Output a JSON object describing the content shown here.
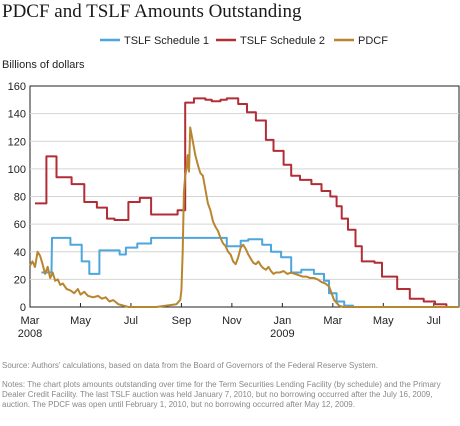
{
  "title": "PDCF and TSLF Amounts Outstanding",
  "source": "Source: Authors' calculations, based on data from the Board of Governors of the Federal Reserve System.",
  "notes": "Notes: The chart plots amounts outstanding over time for the Term Securities Lending Facility (by schedule) and the Primary Dealer Credit Facility. The last TSLF auction was held January 7, 2010, but no borrowing occurred after the July 16, 2009, auction. The PDCF was open until February 1, 2010, but no borrowing occurred after May 12, 2009.",
  "chart_data": {
    "type": "line",
    "ylabel": "Billions of dollars",
    "ylim": [
      0,
      160
    ],
    "yticks": [
      0,
      20,
      40,
      60,
      80,
      100,
      120,
      140,
      160
    ],
    "xlim": [
      0,
      17
    ],
    "x_unit": "months since March 2008",
    "xticks": [
      {
        "x": 0,
        "label": "Mar",
        "sub": "2008"
      },
      {
        "x": 2,
        "label": "May",
        "sub": ""
      },
      {
        "x": 4,
        "label": "Jul",
        "sub": ""
      },
      {
        "x": 6,
        "label": "Sep",
        "sub": ""
      },
      {
        "x": 8,
        "label": "Nov",
        "sub": ""
      },
      {
        "x": 10,
        "label": "Jan",
        "sub": "2009"
      },
      {
        "x": 12,
        "label": "Mar",
        "sub": ""
      },
      {
        "x": 14,
        "label": "May",
        "sub": ""
      },
      {
        "x": 16,
        "label": "Jul",
        "sub": ""
      }
    ],
    "grid": "horizontal",
    "legend_position": "top",
    "series": [
      {
        "name": "TSLF Schedule 1",
        "color": "#4da6dd",
        "points": [
          [
            0.45,
            25
          ],
          [
            0.85,
            25
          ],
          [
            0.87,
            50
          ],
          [
            1.6,
            50
          ],
          [
            1.6,
            45
          ],
          [
            2.05,
            45
          ],
          [
            2.05,
            33
          ],
          [
            2.35,
            33
          ],
          [
            2.35,
            24
          ],
          [
            2.75,
            24
          ],
          [
            2.75,
            41
          ],
          [
            3.55,
            41
          ],
          [
            3.55,
            38
          ],
          [
            3.8,
            38
          ],
          [
            3.8,
            43
          ],
          [
            4.25,
            43
          ],
          [
            4.25,
            46
          ],
          [
            4.8,
            46
          ],
          [
            4.8,
            50
          ],
          [
            7.8,
            50
          ],
          [
            7.8,
            44
          ],
          [
            8.35,
            44
          ],
          [
            8.35,
            48
          ],
          [
            8.65,
            48
          ],
          [
            8.65,
            49
          ],
          [
            9.2,
            49
          ],
          [
            9.2,
            45
          ],
          [
            9.55,
            45
          ],
          [
            9.55,
            40
          ],
          [
            9.95,
            40
          ],
          [
            9.95,
            36
          ],
          [
            10.35,
            36
          ],
          [
            10.35,
            25
          ],
          [
            10.75,
            25
          ],
          [
            10.75,
            27
          ],
          [
            11.25,
            27
          ],
          [
            11.25,
            24
          ],
          [
            11.65,
            24
          ],
          [
            11.65,
            19
          ],
          [
            11.85,
            19
          ],
          [
            11.85,
            10
          ],
          [
            12.15,
            10
          ],
          [
            12.15,
            4
          ],
          [
            12.45,
            4
          ],
          [
            12.45,
            1
          ],
          [
            12.8,
            1
          ],
          [
            12.8,
            0
          ],
          [
            17,
            0
          ]
        ]
      },
      {
        "name": "TSLF Schedule 2",
        "color": "#b22d35",
        "points": [
          [
            0.2,
            75
          ],
          [
            0.65,
            75
          ],
          [
            0.65,
            109
          ],
          [
            1.05,
            109
          ],
          [
            1.05,
            94
          ],
          [
            1.65,
            94
          ],
          [
            1.65,
            89
          ],
          [
            2.15,
            89
          ],
          [
            2.15,
            76
          ],
          [
            2.65,
            76
          ],
          [
            2.65,
            72
          ],
          [
            3.05,
            72
          ],
          [
            3.05,
            64
          ],
          [
            3.35,
            64
          ],
          [
            3.35,
            63
          ],
          [
            3.9,
            63
          ],
          [
            3.9,
            76
          ],
          [
            4.35,
            76
          ],
          [
            4.35,
            79
          ],
          [
            4.8,
            79
          ],
          [
            4.8,
            67
          ],
          [
            5.85,
            67
          ],
          [
            5.85,
            70
          ],
          [
            6.15,
            70
          ],
          [
            6.15,
            148
          ],
          [
            6.5,
            148
          ],
          [
            6.5,
            151
          ],
          [
            6.95,
            151
          ],
          [
            6.95,
            150
          ],
          [
            7.2,
            150
          ],
          [
            7.2,
            149
          ],
          [
            7.55,
            149
          ],
          [
            7.55,
            150
          ],
          [
            7.8,
            150
          ],
          [
            7.8,
            151
          ],
          [
            8.25,
            151
          ],
          [
            8.25,
            147
          ],
          [
            8.6,
            147
          ],
          [
            8.6,
            141
          ],
          [
            8.95,
            141
          ],
          [
            8.95,
            135
          ],
          [
            9.35,
            135
          ],
          [
            9.35,
            121
          ],
          [
            9.65,
            121
          ],
          [
            9.65,
            113
          ],
          [
            10.05,
            113
          ],
          [
            10.05,
            103
          ],
          [
            10.35,
            103
          ],
          [
            10.35,
            95
          ],
          [
            10.7,
            95
          ],
          [
            10.7,
            92
          ],
          [
            11.15,
            92
          ],
          [
            11.15,
            89
          ],
          [
            11.55,
            89
          ],
          [
            11.55,
            84
          ],
          [
            11.9,
            84
          ],
          [
            11.9,
            80
          ],
          [
            12.15,
            80
          ],
          [
            12.15,
            73
          ],
          [
            12.35,
            73
          ],
          [
            12.35,
            64
          ],
          [
            12.6,
            64
          ],
          [
            12.6,
            56
          ],
          [
            12.9,
            56
          ],
          [
            12.9,
            44
          ],
          [
            13.15,
            44
          ],
          [
            13.15,
            33
          ],
          [
            13.65,
            33
          ],
          [
            13.65,
            32
          ],
          [
            13.95,
            32
          ],
          [
            13.95,
            22
          ],
          [
            14.55,
            22
          ],
          [
            14.55,
            13
          ],
          [
            15.05,
            13
          ],
          [
            15.05,
            6
          ],
          [
            15.6,
            6
          ],
          [
            15.6,
            4
          ],
          [
            16.05,
            4
          ],
          [
            16.05,
            2
          ],
          [
            16.5,
            2
          ],
          [
            16.5,
            0
          ],
          [
            17,
            0
          ]
        ]
      },
      {
        "name": "PDCF",
        "color": "#b8862f",
        "points": [
          [
            0,
            30
          ],
          [
            0.1,
            33
          ],
          [
            0.2,
            29
          ],
          [
            0.3,
            40
          ],
          [
            0.4,
            37
          ],
          [
            0.5,
            31
          ],
          [
            0.6,
            24
          ],
          [
            0.7,
            29
          ],
          [
            0.8,
            21
          ],
          [
            0.9,
            25
          ],
          [
            1.0,
            19
          ],
          [
            1.1,
            20
          ],
          [
            1.2,
            16
          ],
          [
            1.3,
            17
          ],
          [
            1.45,
            13
          ],
          [
            1.6,
            12
          ],
          [
            1.75,
            10
          ],
          [
            1.9,
            13
          ],
          [
            2.0,
            9
          ],
          [
            2.15,
            11
          ],
          [
            2.3,
            8
          ],
          [
            2.5,
            7
          ],
          [
            2.7,
            8
          ],
          [
            2.85,
            6
          ],
          [
            3.0,
            7
          ],
          [
            3.15,
            4
          ],
          [
            3.3,
            5
          ],
          [
            3.5,
            2
          ],
          [
            3.7,
            1
          ],
          [
            3.9,
            0
          ],
          [
            5.0,
            0
          ],
          [
            5.4,
            1
          ],
          [
            5.8,
            2
          ],
          [
            5.95,
            5
          ],
          [
            6.0,
            12
          ],
          [
            6.05,
            40
          ],
          [
            6.1,
            83
          ],
          [
            6.15,
            95
          ],
          [
            6.2,
            100
          ],
          [
            6.25,
            110
          ],
          [
            6.3,
            98
          ],
          [
            6.35,
            130
          ],
          [
            6.4,
            125
          ],
          [
            6.45,
            120
          ],
          [
            6.55,
            110
          ],
          [
            6.65,
            103
          ],
          [
            6.75,
            97
          ],
          [
            6.85,
            95
          ],
          [
            6.95,
            85
          ],
          [
            7.05,
            75
          ],
          [
            7.15,
            70
          ],
          [
            7.25,
            62
          ],
          [
            7.35,
            58
          ],
          [
            7.45,
            55
          ],
          [
            7.55,
            50
          ],
          [
            7.65,
            46
          ],
          [
            7.75,
            44
          ],
          [
            7.85,
            40
          ],
          [
            7.95,
            38
          ],
          [
            8.05,
            33
          ],
          [
            8.15,
            31
          ],
          [
            8.25,
            36
          ],
          [
            8.35,
            43
          ],
          [
            8.45,
            45
          ],
          [
            8.55,
            42
          ],
          [
            8.65,
            38
          ],
          [
            8.75,
            35
          ],
          [
            8.85,
            32
          ],
          [
            8.95,
            31
          ],
          [
            9.05,
            33
          ],
          [
            9.15,
            30
          ],
          [
            9.25,
            28
          ],
          [
            9.35,
            27
          ],
          [
            9.45,
            29
          ],
          [
            9.55,
            26
          ],
          [
            9.65,
            24
          ],
          [
            9.75,
            25
          ],
          [
            9.9,
            25
          ],
          [
            10.05,
            26
          ],
          [
            10.2,
            24
          ],
          [
            10.35,
            25
          ],
          [
            10.5,
            24
          ],
          [
            10.65,
            23
          ],
          [
            10.8,
            22
          ],
          [
            10.95,
            22
          ],
          [
            11.1,
            21
          ],
          [
            11.25,
            21
          ],
          [
            11.4,
            20
          ],
          [
            11.55,
            18
          ],
          [
            11.7,
            17
          ],
          [
            11.85,
            15
          ],
          [
            11.95,
            10
          ],
          [
            12.05,
            5
          ],
          [
            12.15,
            3
          ],
          [
            12.25,
            1
          ],
          [
            12.4,
            0
          ],
          [
            17,
            0
          ]
        ]
      }
    ]
  }
}
